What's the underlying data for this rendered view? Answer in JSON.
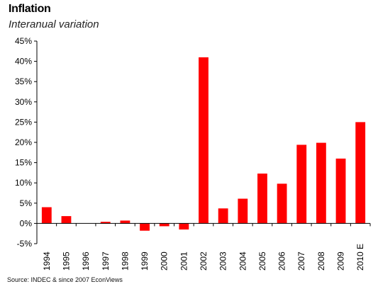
{
  "chart_data": {
    "type": "bar",
    "title": "Inflation",
    "subtitle": "Interanual variation",
    "categories": [
      "1994",
      "1995",
      "1996",
      "1997",
      "1998",
      "1999",
      "2000",
      "2001",
      "2002",
      "2003",
      "2004",
      "2005",
      "2006",
      "2007",
      "2008",
      "2009",
      "2010 E"
    ],
    "values": [
      4.0,
      1.8,
      0.0,
      0.4,
      0.7,
      -1.8,
      -0.7,
      -1.5,
      41.0,
      3.7,
      6.1,
      12.3,
      9.8,
      19.4,
      19.9,
      16.0,
      25.0
    ],
    "ylim": [
      -5,
      45
    ],
    "y_ticks": [
      -5,
      0,
      5,
      10,
      15,
      20,
      25,
      30,
      35,
      40,
      45
    ],
    "y_tick_labels": [
      "-5%",
      "0%",
      "5%",
      "10%",
      "15%",
      "20%",
      "25%",
      "30%",
      "35%",
      "40%",
      "45%"
    ],
    "xlabel": "",
    "ylabel": "",
    "grid": false,
    "bar_color": "#ff0000",
    "source": "Source: INDEC & since 2007 EconViews"
  }
}
